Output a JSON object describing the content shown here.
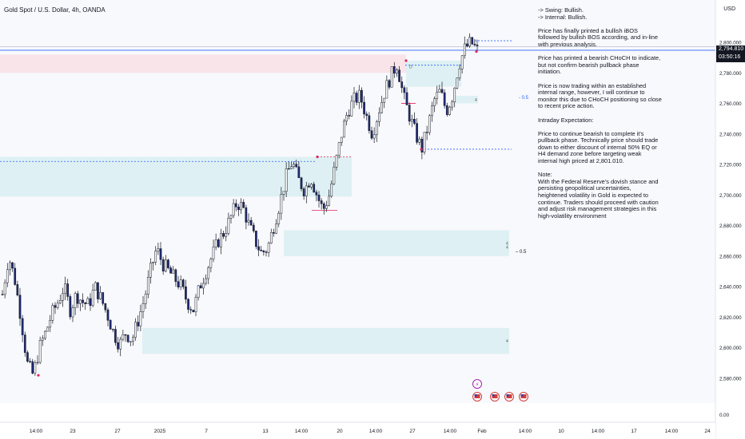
{
  "header": {
    "title": "Gold Spot / U.S. Dollar, 4h, OANDA",
    "currency": "USD"
  },
  "price_tag": {
    "price": "2,794.810",
    "countdown": "03:50:16"
  },
  "notes": {
    "bias": [
      "-> Swing:  Bullish.",
      "-> Internal:  Bullish."
    ],
    "paragraphs": [
      [
        "Price has finally printed a bullish iBOS",
        "followed by bullish BOS according, and in-line",
        "with previous analysis."
      ],
      [
        "Price has printed a bearish CHoCH to indicate,",
        "but not confirm bearish pullback phase",
        "initiation."
      ],
      [
        "Price is now trading within an established",
        "internal range, however, I will continue to",
        "monitor this due to CHoCH positioning so close",
        "to recent price action."
      ],
      [
        "Intraday Expectation:"
      ],
      [
        "Price to continue bearish to complete it's",
        "pullback phase.  Technically price should trade",
        "down to either discount of internal 50% EQ or",
        "H4 demand zone before targeting weak",
        "internal high priced at 2,801.010."
      ],
      [
        "Note:",
        "With the Federal Reserve's dovish stance and",
        "persisting geopolitical uncertainties,",
        "heightened volatility in Gold is expected to",
        "continue. Traders should proceed with caution",
        "and adjust risk management strategies in this",
        "high-volatility environment"
      ]
    ]
  },
  "chart_data": {
    "type": "candlestick",
    "title": "Gold Spot / U.S. Dollar, 4h, OANDA",
    "currency": "USD",
    "y_ticks": [
      2800,
      2780,
      2760,
      2740,
      2720,
      2700,
      2680,
      2660,
      2640,
      2620,
      2600,
      2580
    ],
    "y_tick_labels": [
      "2,800.000",
      "2,780.000",
      "2,760.000",
      "2,740.000",
      "2,720.000",
      "2,700.000",
      "2,680.000",
      "2,660.000",
      "2,640.000",
      "2,620.000",
      "2,600.000",
      "2,580.000"
    ],
    "y_bottom_label": "0.00",
    "x_labels": [
      "14:00",
      "23",
      "27",
      "2025",
      "7",
      "13",
      "14:00",
      "20",
      "14:00",
      "27",
      "14:00",
      "Feb",
      "14:00",
      "10",
      "14:00",
      "17",
      "14:00",
      "24"
    ],
    "last_price": 2794.81,
    "weak_high": 2801.01,
    "path": [
      2635,
      2660,
      2645,
      2620,
      2590,
      2582,
      2600,
      2610,
      2622,
      2630,
      2640,
      2625,
      2635,
      2630,
      2628,
      2640,
      2632,
      2622,
      2610,
      2602,
      2610,
      2605,
      2618,
      2632,
      2650,
      2665,
      2655,
      2650,
      2645,
      2640,
      2630,
      2625,
      2640,
      2650,
      2660,
      2670,
      2676,
      2685,
      2695,
      2692,
      2680,
      2670,
      2662,
      2665,
      2680,
      2695,
      2712,
      2722,
      2710,
      2703,
      2712,
      2700,
      2690,
      2700,
      2720,
      2740,
      2755,
      2762,
      2765,
      2752,
      2740,
      2755,
      2768,
      2778,
      2786,
      2765,
      2752,
      2740,
      2730,
      2745,
      2762,
      2768,
      2755,
      2765,
      2785,
      2796,
      2800,
      2794.8
    ],
    "zones": [
      {
        "kind": "supply",
        "low": 2780,
        "high": 2792
      },
      {
        "kind": "demand",
        "low": 2771,
        "high": 2788
      },
      {
        "kind": "demand",
        "low": 2699,
        "high": 2725
      },
      {
        "kind": "demand",
        "low": 2760,
        "high": 2765,
        "label": "4"
      },
      {
        "kind": "demand",
        "low": 2660,
        "high": 2677,
        "label": "4"
      },
      {
        "kind": "demand",
        "low": 2596,
        "high": 2613,
        "label": "4"
      }
    ],
    "eq_labels": [
      "0.5",
      "0.5"
    ],
    "structure_labels": [
      "D"
    ]
  }
}
